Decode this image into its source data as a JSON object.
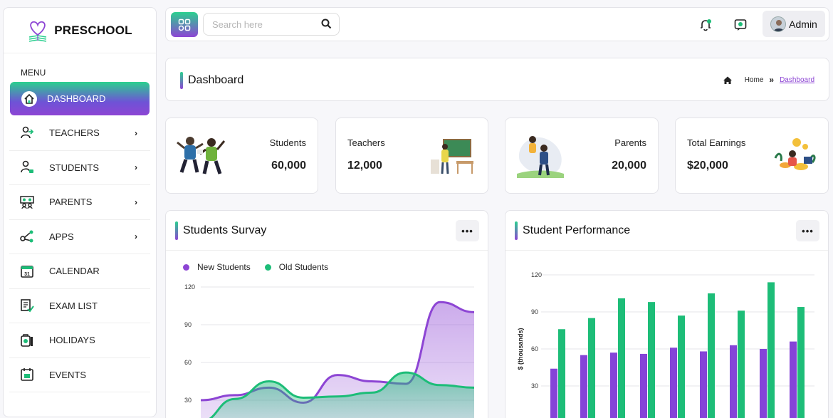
{
  "brand": {
    "name": "PRESCHOOL"
  },
  "sidebar": {
    "menu_title": "MENU",
    "items": [
      {
        "label": "DASHBOARD",
        "icon": "home-icon",
        "active": true,
        "has_submenu": false
      },
      {
        "label": "TEACHERS",
        "icon": "teacher-icon",
        "active": false,
        "has_submenu": true
      },
      {
        "label": "STUDENTS",
        "icon": "student-icon",
        "active": false,
        "has_submenu": true
      },
      {
        "label": "PARENTS",
        "icon": "parents-icon",
        "active": false,
        "has_submenu": true
      },
      {
        "label": "APPS",
        "icon": "share-icon",
        "active": false,
        "has_submenu": true
      },
      {
        "label": "CALENDAR",
        "icon": "calendar-icon",
        "active": false,
        "has_submenu": false
      },
      {
        "label": "EXAM LIST",
        "icon": "exam-list-icon",
        "active": false,
        "has_submenu": false
      },
      {
        "label": "HOLIDAYS",
        "icon": "holiday-icon",
        "active": false,
        "has_submenu": false
      },
      {
        "label": "EVENTS",
        "icon": "events-icon",
        "active": false,
        "has_submenu": false
      }
    ]
  },
  "topbar": {
    "search_placeholder": "Search here",
    "user_name": "Admin"
  },
  "page": {
    "title": "Dashboard",
    "breadcrumb": {
      "home": "Home",
      "separator": "»",
      "current": "Dashboard"
    }
  },
  "stats": [
    {
      "label": "Students",
      "value": "60,000"
    },
    {
      "label": "Teachers",
      "value": "12,000"
    },
    {
      "label": "Parents",
      "value": "20,000"
    },
    {
      "label": "Total Earnings",
      "value": "$20,000"
    }
  ],
  "colors": {
    "accent_green": "#2bd08f",
    "accent_purple": "#8d45d4",
    "bar_purple": "#8544d8",
    "bar_green": "#1dbd78"
  },
  "survey_panel": {
    "title": "Students Survay",
    "more_label": "•••",
    "chart_data": {
      "type": "area",
      "title": "",
      "yticks": [
        30,
        60,
        90,
        120
      ],
      "ylim": [
        0,
        120
      ],
      "legend_position": "top-left",
      "grid": true,
      "series": [
        {
          "name": "New Students",
          "color": "#8d45d4",
          "values": [
            30,
            34,
            40,
            28,
            50,
            45,
            43,
            108,
            100
          ]
        },
        {
          "name": "Old Students",
          "color": "#1dbd78",
          "values": [
            13,
            31,
            45,
            32,
            33,
            36,
            52,
            42,
            40
          ]
        }
      ]
    }
  },
  "performance_panel": {
    "title": "Student Performance",
    "more_label": "•••",
    "chart_data": {
      "type": "bar",
      "title": "",
      "ylabel": "$ (thousands)",
      "yticks": [
        30,
        60,
        90,
        120
      ],
      "ylim": [
        0,
        120
      ],
      "grid": true,
      "series": [
        {
          "color": "#8544d8",
          "values": [
            44,
            55,
            57,
            56,
            61,
            58,
            63,
            60,
            66
          ]
        },
        {
          "color": "#1dbd78",
          "values": [
            76,
            85,
            101,
            98,
            87,
            105,
            91,
            114,
            94
          ]
        }
      ]
    }
  }
}
